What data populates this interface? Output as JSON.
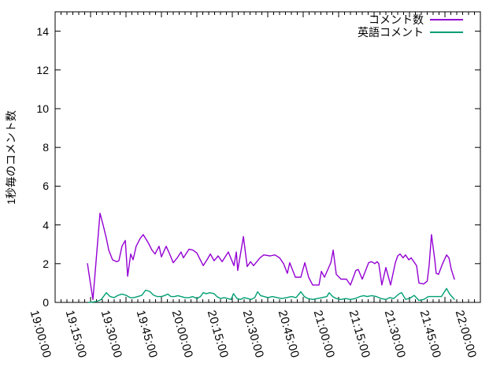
{
  "chart_data": {
    "type": "line",
    "title": "",
    "xlabel": "",
    "ylabel": "1秒毎のコメント数",
    "grid": false,
    "legend_position": "top-right-inside",
    "background_color": "#ffffff",
    "axis_color": "#000000",
    "xticks": [
      "19:00:00",
      "19:15:00",
      "19:30:00",
      "19:45:00",
      "20:00:00",
      "20:15:00",
      "20:30:00",
      "20:45:00",
      "21:00:00",
      "21:15:00",
      "21:30:00",
      "21:45:00",
      "22:00:00"
    ],
    "x_major_interval_minutes": 15,
    "x_minor_interval_minutes": 2.5,
    "xlim_minutes": [
      0,
      180
    ],
    "yticks": [
      0,
      2,
      4,
      6,
      8,
      10,
      12,
      14
    ],
    "ylim": [
      0,
      15
    ],
    "series": [
      {
        "name": "コメント数",
        "color": "#9400d3",
        "points": [
          [
            13.7,
            2.0
          ],
          [
            14.3,
            1.5
          ],
          [
            16,
            0.15
          ],
          [
            19,
            4.6
          ],
          [
            20.3,
            4.0
          ],
          [
            21.7,
            3.3
          ],
          [
            22.7,
            2.7
          ],
          [
            24.3,
            2.2
          ],
          [
            26,
            2.1
          ],
          [
            27,
            2.15
          ],
          [
            28.3,
            2.9
          ],
          [
            29.7,
            3.2
          ],
          [
            30.7,
            1.35
          ],
          [
            32,
            2.5
          ],
          [
            33,
            2.2
          ],
          [
            34.3,
            2.9
          ],
          [
            36,
            3.3
          ],
          [
            37.3,
            3.5
          ],
          [
            39.3,
            3.1
          ],
          [
            41,
            2.7
          ],
          [
            42.3,
            2.5
          ],
          [
            44,
            2.9
          ],
          [
            45,
            2.35
          ],
          [
            47,
            2.9
          ],
          [
            48.3,
            2.55
          ],
          [
            50,
            2.05
          ],
          [
            51.7,
            2.3
          ],
          [
            53.3,
            2.6
          ],
          [
            54.3,
            2.3
          ],
          [
            56.7,
            2.75
          ],
          [
            58.3,
            2.7
          ],
          [
            60,
            2.55
          ],
          [
            62.7,
            1.9
          ],
          [
            64.3,
            2.2
          ],
          [
            65.7,
            2.5
          ],
          [
            67.3,
            2.15
          ],
          [
            69,
            2.4
          ],
          [
            70.7,
            2.1
          ],
          [
            73.3,
            2.6
          ],
          [
            75.7,
            1.9
          ],
          [
            76.7,
            2.6
          ],
          [
            77.3,
            1.65
          ],
          [
            79.7,
            3.4
          ],
          [
            81.3,
            1.85
          ],
          [
            82.7,
            2.1
          ],
          [
            84,
            1.9
          ],
          [
            86.7,
            2.3
          ],
          [
            88.3,
            2.45
          ],
          [
            91,
            2.4
          ],
          [
            93,
            2.45
          ],
          [
            95,
            2.3
          ],
          [
            96.7,
            2.0
          ],
          [
            98.3,
            1.5
          ],
          [
            99.3,
            2.05
          ],
          [
            101.7,
            1.3
          ],
          [
            104,
            1.3
          ],
          [
            105.7,
            2.05
          ],
          [
            107.3,
            1.3
          ],
          [
            109,
            0.9
          ],
          [
            111.7,
            0.9
          ],
          [
            112.7,
            1.6
          ],
          [
            114,
            1.3
          ],
          [
            116.7,
            2.05
          ],
          [
            117.7,
            2.7
          ],
          [
            119,
            1.45
          ],
          [
            121,
            1.2
          ],
          [
            123.3,
            1.2
          ],
          [
            125,
            0.9
          ],
          [
            127.3,
            1.65
          ],
          [
            128.3,
            1.7
          ],
          [
            130,
            1.2
          ],
          [
            132.7,
            2.05
          ],
          [
            134,
            2.1
          ],
          [
            135.3,
            2.0
          ],
          [
            136.3,
            2.1
          ],
          [
            137,
            2.0
          ],
          [
            138.3,
            0.9
          ],
          [
            140,
            1.8
          ],
          [
            142,
            0.9
          ],
          [
            144,
            2.05
          ],
          [
            145,
            2.4
          ],
          [
            146,
            2.5
          ],
          [
            147.3,
            2.3
          ],
          [
            148.3,
            2.45
          ],
          [
            149.7,
            2.2
          ],
          [
            150.7,
            2.3
          ],
          [
            153,
            1.9
          ],
          [
            154,
            1.0
          ],
          [
            156,
            0.95
          ],
          [
            157.5,
            1.1
          ],
          [
            158.3,
            1.9
          ],
          [
            159.3,
            3.5
          ],
          [
            160.7,
            2.2
          ],
          [
            161.3,
            1.5
          ],
          [
            162.3,
            1.45
          ],
          [
            164,
            2.0
          ],
          [
            165.7,
            2.45
          ],
          [
            166.7,
            2.3
          ],
          [
            167.7,
            1.7
          ],
          [
            169,
            1.2
          ]
        ]
      },
      {
        "name": "英語コメント",
        "color": "#009e73",
        "points": [
          [
            14.3,
            0.0
          ],
          [
            16,
            0.02
          ],
          [
            17.7,
            0.05
          ],
          [
            19.5,
            0.15
          ],
          [
            21.7,
            0.5
          ],
          [
            23.3,
            0.3
          ],
          [
            25,
            0.25
          ],
          [
            26.7,
            0.37
          ],
          [
            28.3,
            0.43
          ],
          [
            30,
            0.37
          ],
          [
            31.7,
            0.25
          ],
          [
            33.3,
            0.25
          ],
          [
            35,
            0.3
          ],
          [
            36.7,
            0.37
          ],
          [
            38.3,
            0.63
          ],
          [
            40,
            0.57
          ],
          [
            41.7,
            0.37
          ],
          [
            43.3,
            0.3
          ],
          [
            45,
            0.3
          ],
          [
            46.7,
            0.37
          ],
          [
            47.7,
            0.43
          ],
          [
            49,
            0.3
          ],
          [
            50.5,
            0.3
          ],
          [
            52,
            0.35
          ],
          [
            53.3,
            0.3
          ],
          [
            55,
            0.25
          ],
          [
            56.7,
            0.25
          ],
          [
            58.3,
            0.3
          ],
          [
            60,
            0.2
          ],
          [
            61.5,
            0.3
          ],
          [
            62.7,
            0.5
          ],
          [
            64,
            0.45
          ],
          [
            65.5,
            0.5
          ],
          [
            67.3,
            0.45
          ],
          [
            68.5,
            0.3
          ],
          [
            70,
            0.2
          ],
          [
            71.5,
            0.25
          ],
          [
            73,
            0.2
          ],
          [
            74.5,
            0.15
          ],
          [
            75.5,
            0.45
          ],
          [
            77,
            0.2
          ],
          [
            78.5,
            0.15
          ],
          [
            80,
            0.25
          ],
          [
            81.5,
            0.2
          ],
          [
            83,
            0.15
          ],
          [
            84.5,
            0.25
          ],
          [
            85.7,
            0.55
          ],
          [
            87,
            0.35
          ],
          [
            88.5,
            0.3
          ],
          [
            90,
            0.25
          ],
          [
            92,
            0.3
          ],
          [
            94,
            0.25
          ],
          [
            96,
            0.2
          ],
          [
            98,
            0.25
          ],
          [
            100,
            0.3
          ],
          [
            102,
            0.25
          ],
          [
            104,
            0.55
          ],
          [
            105.5,
            0.3
          ],
          [
            107,
            0.2
          ],
          [
            109,
            0.15
          ],
          [
            111,
            0.2
          ],
          [
            113,
            0.25
          ],
          [
            115,
            0.3
          ],
          [
            116,
            0.5
          ],
          [
            117.5,
            0.3
          ],
          [
            119,
            0.2
          ],
          [
            121,
            0.15
          ],
          [
            123,
            0.2
          ],
          [
            125,
            0.15
          ],
          [
            127,
            0.2
          ],
          [
            129,
            0.3
          ],
          [
            130.7,
            0.35
          ],
          [
            132,
            0.3
          ],
          [
            134,
            0.35
          ],
          [
            136,
            0.3
          ],
          [
            138,
            0.2
          ],
          [
            140,
            0.15
          ],
          [
            141.7,
            0.25
          ],
          [
            143.3,
            0.2
          ],
          [
            145.7,
            0.45
          ],
          [
            146.7,
            0.5
          ],
          [
            148.3,
            0.16
          ],
          [
            150,
            0.2
          ],
          [
            152,
            0.36
          ],
          [
            154,
            0.1
          ],
          [
            156,
            0.15
          ],
          [
            158,
            0.3
          ],
          [
            160,
            0.3
          ],
          [
            162,
            0.3
          ],
          [
            163.5,
            0.3
          ],
          [
            165.7,
            0.72
          ],
          [
            167,
            0.43
          ],
          [
            169,
            0.16
          ]
        ]
      }
    ]
  }
}
